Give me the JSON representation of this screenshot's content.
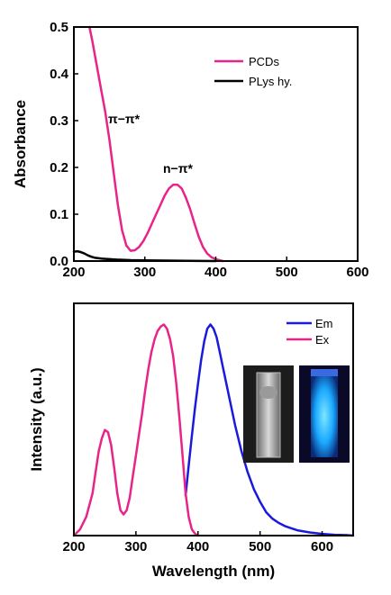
{
  "chart_data": [
    {
      "type": "line",
      "title": "",
      "xlabel": "",
      "ylabel": "Absorbance",
      "xlim": [
        200,
        600
      ],
      "ylim": [
        0,
        0.5
      ],
      "xticks": [
        "200",
        "300",
        "400",
        "500",
        "600"
      ],
      "yticks": [
        "0.0",
        "0.1",
        "0.2",
        "0.3",
        "0.4",
        "0.5"
      ],
      "legend_position": "top-right",
      "series": [
        {
          "name": "PCDs",
          "color": "#e8248a",
          "x": [
            222,
            226,
            232,
            238,
            244,
            250,
            256,
            262,
            268,
            274,
            280,
            286,
            292,
            298,
            304,
            310,
            316,
            322,
            328,
            334,
            340,
            346,
            352,
            358,
            364,
            370,
            376,
            382,
            388,
            394,
            400,
            410
          ],
          "y": [
            0.5,
            0.47,
            0.42,
            0.37,
            0.32,
            0.26,
            0.19,
            0.12,
            0.065,
            0.033,
            0.022,
            0.023,
            0.03,
            0.043,
            0.06,
            0.08,
            0.1,
            0.12,
            0.14,
            0.155,
            0.163,
            0.163,
            0.155,
            0.135,
            0.11,
            0.08,
            0.052,
            0.03,
            0.016,
            0.008,
            0.004,
            0.0
          ]
        },
        {
          "name": "PLys hy.",
          "color": "#000000",
          "x": [
            200,
            205,
            210,
            215,
            220,
            225,
            230,
            240,
            250,
            260,
            280,
            300,
            330,
            360,
            400
          ],
          "y": [
            0.02,
            0.021,
            0.019,
            0.016,
            0.012,
            0.009,
            0.007,
            0.005,
            0.004,
            0.003,
            0.002,
            0.0015,
            0.001,
            0.0005,
            0.0
          ]
        }
      ],
      "annotations": [
        {
          "text": "π−π*",
          "x": 255,
          "y": 0.3
        },
        {
          "text": "n−π*",
          "x": 345,
          "y": 0.19
        }
      ]
    },
    {
      "type": "line",
      "title": "",
      "xlabel": "Wavelength (nm)",
      "ylabel": "Intensity (a.u.)",
      "xlim": [
        200,
        650
      ],
      "ylim": [
        0,
        1
      ],
      "xticks": [
        "200",
        "300",
        "400",
        "500",
        "600"
      ],
      "legend_position": "top-right",
      "series": [
        {
          "name": "Em",
          "color": "#1a1adc",
          "x": [
            380,
            385,
            390,
            395,
            400,
            405,
            410,
            415,
            420,
            425,
            430,
            435,
            440,
            450,
            460,
            470,
            480,
            490,
            500,
            510,
            520,
            530,
            540,
            550,
            560,
            580,
            600,
            620,
            640,
            650
          ],
          "y": [
            0.19,
            0.33,
            0.47,
            0.6,
            0.72,
            0.83,
            0.92,
            0.98,
            1.0,
            0.98,
            0.94,
            0.87,
            0.8,
            0.66,
            0.52,
            0.4,
            0.3,
            0.22,
            0.16,
            0.11,
            0.08,
            0.06,
            0.045,
            0.035,
            0.025,
            0.015,
            0.008,
            0.004,
            0.002,
            0.0
          ]
        },
        {
          "name": "Ex",
          "color": "#e8248a",
          "x": [
            200,
            210,
            220,
            230,
            235,
            240,
            245,
            250,
            255,
            260,
            265,
            270,
            275,
            280,
            285,
            290,
            295,
            300,
            305,
            310,
            315,
            320,
            325,
            330,
            335,
            340,
            345,
            350,
            355,
            360,
            365,
            370,
            375,
            380,
            385,
            390,
            395,
            400
          ],
          "y": [
            0.0,
            0.03,
            0.09,
            0.2,
            0.3,
            0.4,
            0.46,
            0.5,
            0.49,
            0.43,
            0.32,
            0.2,
            0.12,
            0.1,
            0.12,
            0.18,
            0.28,
            0.38,
            0.48,
            0.58,
            0.69,
            0.79,
            0.87,
            0.93,
            0.97,
            0.99,
            1.0,
            0.98,
            0.93,
            0.85,
            0.72,
            0.56,
            0.38,
            0.2,
            0.09,
            0.03,
            0.01,
            0.0
          ]
        }
      ]
    }
  ]
}
